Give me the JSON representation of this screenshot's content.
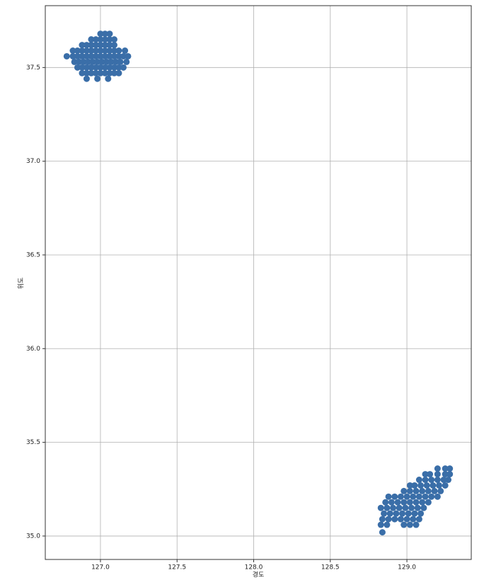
{
  "chart_data": {
    "type": "scatter",
    "xlabel": "경도",
    "ylabel": "위도",
    "color": "#3a6ea8",
    "grid": true,
    "xlim": [
      126.64,
      129.42
    ],
    "ylim": [
      34.875,
      37.83
    ],
    "xticks": [
      {
        "value": 127,
        "label": "127.0"
      },
      127.5,
      {
        "value": 128,
        "label": "128.0"
      },
      128.5,
      {
        "value": 129,
        "label": "129.0"
      }
    ],
    "yticks": [
      {
        "value": 35,
        "label": "35.0"
      },
      35.5,
      {
        "value": 36,
        "label": "36.0"
      },
      36.5,
      {
        "value": 37,
        "label": "37.0"
      },
      37.5
    ],
    "x": [
      127.0,
      127.03,
      127.06,
      126.94,
      126.97,
      127.0,
      127.03,
      127.06,
      127.09,
      126.88,
      126.91,
      126.94,
      126.97,
      127.0,
      127.03,
      127.06,
      127.09,
      126.82,
      126.85,
      126.88,
      126.91,
      126.94,
      126.97,
      127.0,
      127.03,
      127.06,
      127.09,
      127.12,
      127.16,
      126.78,
      126.82,
      126.85,
      126.88,
      126.91,
      126.94,
      126.97,
      127.0,
      127.03,
      127.06,
      127.09,
      127.12,
      127.15,
      127.18,
      126.83,
      126.86,
      126.89,
      126.92,
      126.95,
      126.98,
      127.01,
      127.04,
      127.07,
      127.1,
      127.13,
      127.17,
      126.85,
      126.88,
      126.91,
      126.94,
      126.97,
      127.0,
      127.03,
      127.06,
      127.09,
      127.12,
      127.15,
      126.88,
      126.91,
      126.94,
      126.97,
      127.0,
      127.03,
      127.06,
      127.09,
      127.12,
      126.91,
      126.98,
      127.05,
      129.2,
      129.25,
      129.28,
      129.12,
      129.15,
      129.2,
      129.25,
      129.28,
      129.08,
      129.12,
      129.16,
      129.2,
      129.24,
      129.27,
      129.02,
      129.05,
      129.09,
      129.13,
      129.17,
      129.21,
      129.25,
      128.98,
      129.02,
      129.06,
      129.1,
      129.14,
      129.18,
      129.22,
      128.88,
      128.92,
      128.96,
      129.0,
      129.04,
      129.08,
      129.12,
      129.16,
      129.2,
      128.86,
      128.9,
      128.94,
      128.98,
      129.02,
      129.06,
      129.1,
      129.14,
      128.83,
      128.87,
      128.91,
      128.95,
      128.99,
      129.03,
      129.07,
      129.11,
      128.85,
      128.89,
      128.93,
      128.97,
      129.01,
      129.05,
      129.09,
      128.84,
      128.88,
      128.92,
      128.96,
      129.0,
      129.04,
      129.08,
      128.83,
      128.87,
      128.98,
      129.02,
      129.06,
      128.84
    ],
    "values": [
      37.68,
      37.68,
      37.68,
      37.65,
      37.65,
      37.65,
      37.65,
      37.65,
      37.65,
      37.62,
      37.62,
      37.62,
      37.62,
      37.62,
      37.62,
      37.62,
      37.62,
      37.59,
      37.59,
      37.59,
      37.59,
      37.59,
      37.59,
      37.59,
      37.59,
      37.59,
      37.59,
      37.59,
      37.59,
      37.56,
      37.56,
      37.56,
      37.56,
      37.56,
      37.56,
      37.56,
      37.56,
      37.56,
      37.56,
      37.56,
      37.56,
      37.56,
      37.56,
      37.53,
      37.53,
      37.53,
      37.53,
      37.53,
      37.53,
      37.53,
      37.53,
      37.53,
      37.53,
      37.53,
      37.53,
      37.5,
      37.5,
      37.5,
      37.5,
      37.5,
      37.5,
      37.5,
      37.5,
      37.5,
      37.5,
      37.5,
      37.47,
      37.47,
      37.47,
      37.47,
      37.47,
      37.47,
      37.47,
      37.47,
      37.47,
      37.44,
      37.44,
      37.44,
      35.36,
      35.36,
      35.36,
      35.33,
      35.33,
      35.33,
      35.33,
      35.33,
      35.3,
      35.3,
      35.3,
      35.3,
      35.3,
      35.3,
      35.27,
      35.27,
      35.27,
      35.27,
      35.27,
      35.27,
      35.27,
      35.24,
      35.24,
      35.24,
      35.24,
      35.24,
      35.24,
      35.24,
      35.21,
      35.21,
      35.21,
      35.21,
      35.21,
      35.21,
      35.21,
      35.21,
      35.21,
      35.18,
      35.18,
      35.18,
      35.18,
      35.18,
      35.18,
      35.18,
      35.18,
      35.15,
      35.15,
      35.15,
      35.15,
      35.15,
      35.15,
      35.15,
      35.15,
      35.12,
      35.12,
      35.12,
      35.12,
      35.12,
      35.12,
      35.12,
      35.09,
      35.09,
      35.09,
      35.09,
      35.09,
      35.09,
      35.09,
      35.06,
      35.06,
      35.06,
      35.06,
      35.06,
      35.02
    ]
  }
}
